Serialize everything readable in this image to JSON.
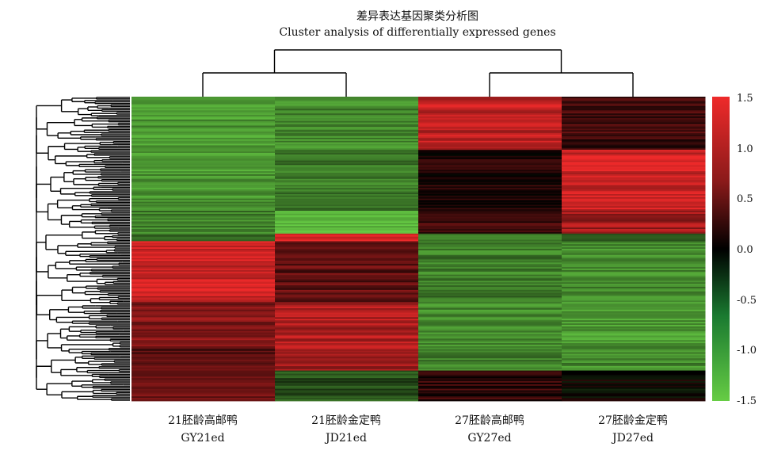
{
  "chart_data": {
    "type": "heatmap",
    "title": "差异表达基因聚类分析图",
    "subtitle": "Cluster analysis of differentially expressed genes",
    "columns": [
      {
        "name_zh": "21胚龄高邮鸭",
        "name_en": "GY21ed"
      },
      {
        "name_zh": "21胚龄金定鸭",
        "name_en": "JD21ed"
      },
      {
        "name_zh": "27胚龄高邮鸭",
        "name_en": "GY27ed"
      },
      {
        "name_zh": "27胚龄金定鸭",
        "name_en": "JD27ed"
      }
    ],
    "color_scale": {
      "min": -1.5,
      "max": 1.5,
      "ticks": [
        "1.5",
        "1.0",
        "0.5",
        "0.0",
        "-0.5",
        "-1.0",
        "-1.5"
      ],
      "low_color": "#66cc44",
      "mid_color": "#000000",
      "high_color": "#ee2a2a"
    },
    "blocks": [
      {
        "rows": "1-35",
        "values": [
          -1.1,
          -1.0,
          1.2,
          0.4
        ]
      },
      {
        "rows": "36-75",
        "values": [
          -1.1,
          -0.9,
          0.2,
          1.3
        ]
      },
      {
        "rows": "76-90",
        "values": [
          -0.9,
          -1.3,
          0.4,
          1.0
        ]
      },
      {
        "rows": "91-95",
        "values": [
          -0.6,
          1.4,
          -0.8,
          -0.6
        ]
      },
      {
        "rows": "96-135",
        "values": [
          1.3,
          0.6,
          -0.9,
          -1.0
        ]
      },
      {
        "rows": "136-165",
        "values": [
          0.8,
          1.1,
          -1.0,
          -1.1
        ]
      },
      {
        "rows": "166-180",
        "values": [
          0.5,
          1.0,
          -0.9,
          -1.0
        ]
      },
      {
        "rows": "181-200",
        "values": [
          0.7,
          -0.6,
          0.3,
          0.0
        ]
      }
    ],
    "column_dendrogram": [
      [
        "GY21ed",
        "JD21ed"
      ],
      [
        "GY27ed",
        "JD27ed"
      ]
    ],
    "row_dendrogram": "hierarchical clustering of all differentially expressed genes"
  }
}
